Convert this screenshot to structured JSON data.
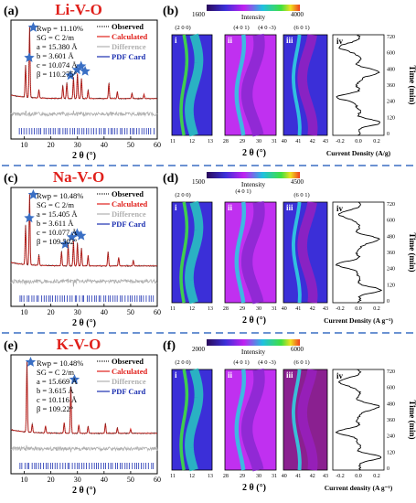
{
  "rows": [
    {
      "panel_left": "(a)",
      "panel_right": "(b)",
      "title": "Li-V-O",
      "title_color": "#e0201b",
      "refine": [
        "Rwp = 11.10%",
        "SG = C 2/m",
        "a = 15.380 Å",
        "b = 3.601 Å",
        "c = 10.074 Å",
        "β = 110.275°"
      ],
      "legend": [
        "Observed",
        "Calculated",
        "Difference",
        "PDF Card"
      ],
      "xticks": [
        "10",
        "20",
        "30",
        "40",
        "50",
        "60"
      ],
      "xlabel": "2 θ (°)",
      "cb_min": "1600",
      "cb_max": "4000",
      "cb_label": "Intensity",
      "sub": [
        "i",
        "ii",
        "iii",
        "iv"
      ],
      "hkl": [
        "(2 0 0)",
        "(4 0 1)",
        "(4 0 -3)",
        "(6 0 1)"
      ],
      "ticks_i": [
        "11",
        "12",
        "13"
      ],
      "ticks_ii": [
        "28",
        "29",
        "30",
        "31"
      ],
      "ticks_iii": [
        "40",
        "41",
        "42",
        "43"
      ],
      "ticks_iv": [
        "-0.2",
        "0.0",
        "0.2"
      ],
      "cur_label": "Current Density (A/g)",
      "time_ticks": [
        "720",
        "600",
        "480",
        "360",
        "240",
        "120",
        "0"
      ],
      "time_label": "Time (min)",
      "xlabel_b": "2 θ (°)"
    },
    {
      "panel_left": "(c)",
      "panel_right": "(d)",
      "title": "Na-V-O",
      "title_color": "#e0201b",
      "refine": [
        "Rwp = 10.48%",
        "SG = C 2/m",
        "a = 15.405 Å",
        "b = 3.611 Å",
        "c = 10.077 Å",
        "β = 109.502°"
      ],
      "legend": [
        "Observed",
        "Calculated",
        "Difference",
        "PDF Card"
      ],
      "xticks": [
        "10",
        "20",
        "30",
        "40",
        "50",
        "60"
      ],
      "xlabel": "2 θ (°)",
      "cb_min": "1500",
      "cb_max": "4500",
      "cb_label": "Intensity",
      "sub": [
        "i",
        "ii",
        "iii",
        "iv"
      ],
      "hkl": [
        "(2 0 0)",
        "(4 0 1)",
        "(6 0 1)"
      ],
      "ticks_i": [
        "11",
        "12",
        "13"
      ],
      "ticks_ii": [
        "28",
        "29",
        "30",
        "31"
      ],
      "ticks_iii": [
        "40",
        "41",
        "42",
        "43"
      ],
      "ticks_iv": [
        "-0.2",
        "0.0",
        "0.2"
      ],
      "cur_label": "Current Density (A g⁻¹)",
      "time_ticks": [
        "720",
        "600",
        "480",
        "360",
        "240",
        "120",
        "0"
      ],
      "time_label": "Time (min)",
      "xlabel_b": "2 θ (°)"
    },
    {
      "panel_left": "(e)",
      "panel_right": "(f)",
      "title": "K-V-O",
      "title_color": "#e0201b",
      "refine": [
        "Rwp = 10.48%",
        "SG = C 2/m",
        "a = 15.669 Å",
        "b = 3.615 Å",
        "c = 10.116 Å",
        "β = 109.22°"
      ],
      "legend": [
        "Observed",
        "Calculated",
        "Difference",
        "PDF Card"
      ],
      "xticks": [
        "10",
        "20",
        "30",
        "40",
        "50",
        "60"
      ],
      "xlabel": "2 θ (°)",
      "cb_min": "2000",
      "cb_max": "6000",
      "cb_label": "Intensity",
      "sub": [
        "i",
        "ii",
        "iii",
        "iv"
      ],
      "hkl": [
        "(2 0 0)",
        "(4 0 1)",
        "(4 0 -3)",
        "(6 0 1)"
      ],
      "ticks_i": [
        "11",
        "12",
        "13"
      ],
      "ticks_ii": [
        "28",
        "29",
        "30",
        "31"
      ],
      "ticks_iii": [
        "40",
        "41",
        "42",
        "43"
      ],
      "ticks_iv": [
        "-0.2",
        "0.0",
        "0.2"
      ],
      "cur_label": "Current density (A g⁻¹)",
      "time_ticks": [
        "720",
        "600",
        "480",
        "360",
        "240",
        "120",
        "0"
      ],
      "time_label": "Time (min)",
      "xlabel_b": "2 θ (°)"
    }
  ],
  "colors": {
    "observed": "#222222",
    "calculated": "#e0201b",
    "difference": "#b0b0b0",
    "pdf": "#1b2fb0",
    "star": "#3a6fc4",
    "divider": "#3a6fc4"
  },
  "chart_data": [
    {
      "type": "line",
      "title": "Li-V-O",
      "xlabel": "2 θ (°)",
      "xlim": [
        5,
        60
      ],
      "series": [
        {
          "name": "Calculated",
          "peaks": [
            [
              10.5,
              0.45
            ],
            [
              12.0,
              1.0
            ],
            [
              15.5,
              0.12
            ],
            [
              24.5,
              0.18
            ],
            [
              26.0,
              0.22
            ],
            [
              28.5,
              0.3
            ],
            [
              30.0,
              0.35
            ],
            [
              31.5,
              0.28
            ],
            [
              34.0,
              0.12
            ],
            [
              41.8,
              0.22
            ],
            [
              45.0,
              0.1
            ],
            [
              50.5,
              0.08
            ],
            [
              55.0,
              0.06
            ]
          ]
        }
      ]
    },
    {
      "type": "line",
      "title": "Na-V-O",
      "xlabel": "2 θ (°)",
      "xlim": [
        5,
        60
      ],
      "series": [
        {
          "name": "Calculated",
          "peaks": [
            [
              10.5,
              0.55
            ],
            [
              12.0,
              1.0
            ],
            [
              15.5,
              0.15
            ],
            [
              24.0,
              0.2
            ],
            [
              26.5,
              0.3
            ],
            [
              28.5,
              0.35
            ],
            [
              30.0,
              0.32
            ],
            [
              31.5,
              0.25
            ],
            [
              34.0,
              0.15
            ],
            [
              41.5,
              0.2
            ],
            [
              45.5,
              0.12
            ],
            [
              51.0,
              0.08
            ]
          ]
        }
      ]
    },
    {
      "type": "line",
      "title": "K-V-O",
      "xlabel": "2 θ (°)",
      "xlim": [
        5,
        60
      ],
      "series": [
        {
          "name": "Calculated",
          "peaks": [
            [
              11.0,
              1.0
            ],
            [
              13.0,
              0.12
            ],
            [
              18.0,
              0.1
            ],
            [
              25.0,
              0.15
            ],
            [
              27.5,
              0.65
            ],
            [
              30.5,
              0.12
            ],
            [
              34.0,
              0.1
            ],
            [
              40.5,
              0.14
            ],
            [
              45.0,
              0.08
            ],
            [
              50.0,
              0.06
            ]
          ]
        }
      ]
    }
  ]
}
